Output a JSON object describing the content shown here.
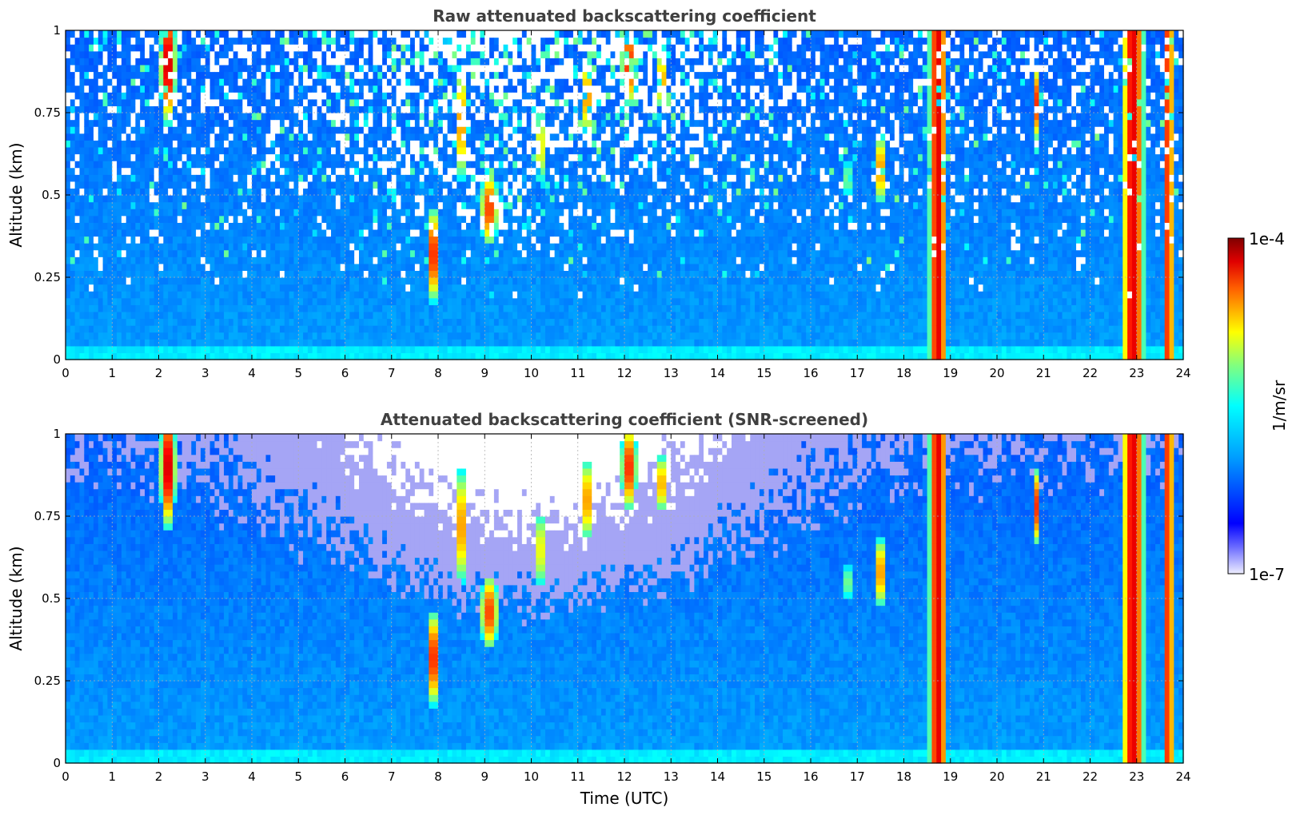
{
  "chart_data": [
    {
      "type": "heatmap",
      "title": "Raw attenuated backscattering coefficient",
      "xlabel": "",
      "ylabel": "Altitude (km)",
      "xlim": [
        0,
        24
      ],
      "ylim": [
        0,
        1
      ],
      "x_ticks": [
        "0",
        "1",
        "2",
        "3",
        "4",
        "5",
        "6",
        "7",
        "8",
        "9",
        "10",
        "11",
        "12",
        "13",
        "14",
        "15",
        "16",
        "17",
        "18",
        "19",
        "20",
        "21",
        "22",
        "23",
        "24"
      ],
      "y_ticks": [
        "0",
        "0.25",
        "0.5",
        "0.75",
        "1"
      ],
      "grid": true,
      "screened": false
    },
    {
      "type": "heatmap",
      "title": "Attenuated backscattering coefficient (SNR-screened)",
      "xlabel": "Time (UTC)",
      "ylabel": "Altitude (km)",
      "xlim": [
        0,
        24
      ],
      "ylim": [
        0,
        1
      ],
      "x_ticks": [
        "0",
        "1",
        "2",
        "3",
        "4",
        "5",
        "6",
        "7",
        "8",
        "9",
        "10",
        "11",
        "12",
        "13",
        "14",
        "15",
        "16",
        "17",
        "18",
        "19",
        "20",
        "21",
        "22",
        "23",
        "24"
      ],
      "y_ticks": [
        "0",
        "0.25",
        "0.5",
        "0.75",
        "1"
      ],
      "grid": true,
      "screened": true
    }
  ],
  "colorbar": {
    "label": "1/m/sr",
    "max_label": "1e-4",
    "min_label": "1e-7",
    "colormap": "jet",
    "scale": "log"
  },
  "features": {
    "vertical_plumes": [
      {
        "t0": 18.55,
        "t1": 18.92,
        "strength": 1.0
      },
      {
        "t0": 22.7,
        "t1": 23.15,
        "strength": 1.0
      },
      {
        "t0": 23.55,
        "t1": 23.8,
        "strength": 0.85
      }
    ],
    "elevated_cells": [
      {
        "t": 2.2,
        "z": 0.9,
        "w": 0.18,
        "h": 0.2,
        "s": 1.0
      },
      {
        "t": 7.9,
        "z": 0.32,
        "w": 0.12,
        "h": 0.16,
        "s": 0.95
      },
      {
        "t": 8.5,
        "z": 0.72,
        "w": 0.1,
        "h": 0.2,
        "s": 0.8
      },
      {
        "t": 9.1,
        "z": 0.46,
        "w": 0.2,
        "h": 0.12,
        "s": 0.8
      },
      {
        "t": 10.2,
        "z": 0.65,
        "w": 0.08,
        "h": 0.14,
        "s": 0.7
      },
      {
        "t": 11.2,
        "z": 0.8,
        "w": 0.1,
        "h": 0.14,
        "s": 0.8
      },
      {
        "t": 12.1,
        "z": 0.9,
        "w": 0.18,
        "h": 0.14,
        "s": 0.85
      },
      {
        "t": 12.8,
        "z": 0.85,
        "w": 0.1,
        "h": 0.1,
        "s": 0.75
      },
      {
        "t": 16.8,
        "z": 0.55,
        "w": 0.06,
        "h": 0.08,
        "s": 0.7
      },
      {
        "t": 17.5,
        "z": 0.58,
        "w": 0.1,
        "h": 0.12,
        "s": 0.8
      },
      {
        "t": 20.85,
        "z": 0.78,
        "w": 0.06,
        "h": 0.12,
        "s": 0.8
      },
      {
        "t": 23.7,
        "z": 0.5,
        "w": 0.08,
        "h": 0.18,
        "s": 0.85
      }
    ]
  }
}
